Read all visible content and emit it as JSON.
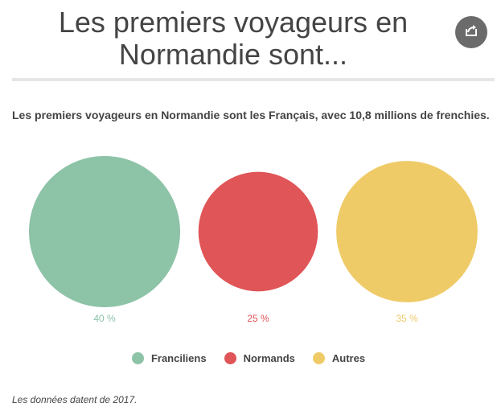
{
  "header": {
    "title_line1": "Les premiers voyageurs en",
    "title_line2": "Normandie sont..."
  },
  "subtitle": "Les premiers voyageurs en Normandie sont les Français, avec 10,8 millions de frenchies.",
  "footnote": "Les données datent de 2017.",
  "share_icon": "share-icon",
  "chart_data": {
    "type": "bubble",
    "categories": [
      "Franciliens",
      "Normands",
      "Autres"
    ],
    "values": [
      40,
      25,
      35
    ],
    "value_labels": [
      "40 %",
      "25 %",
      "35 %"
    ],
    "colors": [
      "#8dc3a7",
      "#e05557",
      "#efcb68"
    ],
    "legend_position": "bottom-center"
  },
  "legend": [
    {
      "label": "Franciliens",
      "color": "#8dc3a7"
    },
    {
      "label": "Normands",
      "color": "#e05557"
    },
    {
      "label": "Autres",
      "color": "#efcb68"
    }
  ]
}
